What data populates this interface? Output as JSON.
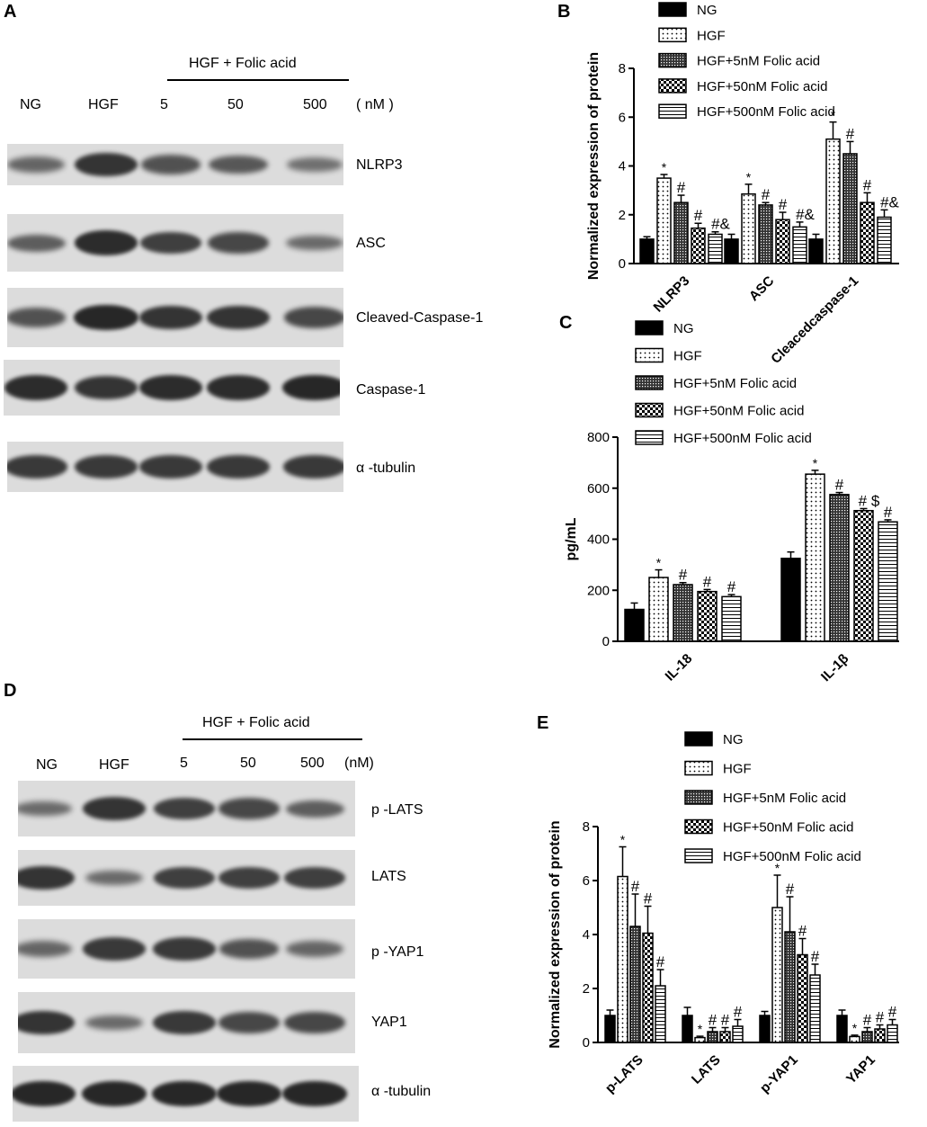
{
  "panel_labels": {
    "a": "A",
    "b": "B",
    "c": "C",
    "d": "D",
    "e": "E"
  },
  "blot_A": {
    "header": "HGF + Folic acid",
    "lanes": [
      "NG",
      "HGF",
      "5",
      "50",
      "500"
    ],
    "unit": "( nM )",
    "rows": [
      {
        "label": "NLRP3",
        "intensity": [
          0.45,
          0.85,
          0.6,
          0.55,
          0.35
        ]
      },
      {
        "label": "ASC",
        "intensity": [
          0.5,
          0.9,
          0.75,
          0.7,
          0.4
        ]
      },
      {
        "label": "Cleaved-Caspase-1",
        "intensity": [
          0.6,
          0.95,
          0.85,
          0.85,
          0.7
        ]
      },
      {
        "label": "Caspase-1",
        "intensity": [
          0.9,
          0.85,
          0.9,
          0.9,
          0.95
        ]
      },
      {
        "label": "α -tubulin",
        "intensity": [
          0.8,
          0.8,
          0.8,
          0.8,
          0.8
        ]
      }
    ]
  },
  "blot_D": {
    "header": "HGF + Folic acid",
    "lanes": [
      "NG",
      "HGF",
      "5",
      "50",
      "500"
    ],
    "unit": "(nM)",
    "rows": [
      {
        "label": "p -LATS",
        "intensity": [
          0.4,
          0.85,
          0.75,
          0.7,
          0.5
        ]
      },
      {
        "label": "LATS",
        "intensity": [
          0.85,
          0.4,
          0.75,
          0.75,
          0.75
        ]
      },
      {
        "label": "p -YAP1",
        "intensity": [
          0.45,
          0.8,
          0.8,
          0.6,
          0.45
        ]
      },
      {
        "label": "YAP1",
        "intensity": [
          0.85,
          0.4,
          0.8,
          0.7,
          0.7
        ]
      },
      {
        "label": "α -tubulin",
        "intensity": [
          0.95,
          0.95,
          0.95,
          0.95,
          0.95
        ]
      }
    ]
  },
  "legend_entries": [
    "NG",
    "HGF",
    "HGF+5nM Folic acid",
    "HGF+50nM Folic acid",
    "HGF+500nM Folic acid"
  ],
  "chart_data": [
    {
      "panel": "B",
      "type": "bar",
      "ylabel": "Normalized expression of protein",
      "ylim": [
        0,
        8
      ],
      "yticks": [
        0,
        2,
        4,
        6,
        8
      ],
      "categories": [
        "NLRP3",
        "ASC",
        "Cleacedcaspase-1"
      ],
      "series": [
        {
          "name": "NG",
          "values": [
            1.0,
            1.0,
            1.0
          ],
          "errors": [
            0.1,
            0.2,
            0.2
          ]
        },
        {
          "name": "HGF",
          "values": [
            3.5,
            2.85,
            5.1
          ],
          "errors": [
            0.15,
            0.4,
            0.7
          ]
        },
        {
          "name": "HGF+5nM Folic acid",
          "values": [
            2.5,
            2.4,
            4.5
          ],
          "errors": [
            0.3,
            0.1,
            0.5
          ]
        },
        {
          "name": "HGF+50nM Folic acid",
          "values": [
            1.45,
            1.8,
            2.5
          ],
          "errors": [
            0.2,
            0.3,
            0.4
          ]
        },
        {
          "name": "HGF+500nM Folic acid",
          "values": [
            1.2,
            1.5,
            1.9
          ],
          "errors": [
            0.1,
            0.2,
            0.3
          ]
        }
      ],
      "annotations": [
        [
          "",
          "*",
          "#",
          "#",
          "#&"
        ],
        [
          "",
          "*",
          "#",
          "#",
          "#&"
        ],
        [
          "",
          "*",
          "#",
          "#",
          "#&"
        ]
      ]
    },
    {
      "panel": "C",
      "type": "bar",
      "ylabel": "pg/mL",
      "ylim": [
        0,
        800
      ],
      "yticks": [
        0,
        200,
        400,
        600,
        800
      ],
      "categories": [
        "IL-18",
        "IL-1β"
      ],
      "series": [
        {
          "name": "NG",
          "values": [
            125,
            325
          ],
          "errors": [
            25,
            25
          ]
        },
        {
          "name": "HGF",
          "values": [
            250,
            655
          ],
          "errors": [
            30,
            15
          ]
        },
        {
          "name": "HGF+5nM Folic acid",
          "values": [
            222,
            575
          ],
          "errors": [
            8,
            8
          ]
        },
        {
          "name": "HGF+50nM Folic acid",
          "values": [
            195,
            512
          ],
          "errors": [
            8,
            8
          ]
        },
        {
          "name": "HGF+500nM Folic acid",
          "values": [
            175,
            468
          ],
          "errors": [
            8,
            8
          ]
        }
      ],
      "annotations": [
        [
          "",
          "*",
          "#",
          "#",
          "#"
        ],
        [
          "",
          "*",
          "#",
          "# $",
          "#"
        ]
      ]
    },
    {
      "panel": "E",
      "type": "bar",
      "ylabel": "Normalized expression of protein",
      "ylim": [
        0,
        8
      ],
      "yticks": [
        0,
        2,
        4,
        6,
        8
      ],
      "categories": [
        "p-LATS",
        "LATS",
        "p-YAP1",
        "YAP1"
      ],
      "series": [
        {
          "name": "NG",
          "values": [
            1.0,
            1.0,
            1.0,
            1.0
          ],
          "errors": [
            0.2,
            0.3,
            0.15,
            0.2
          ]
        },
        {
          "name": "HGF",
          "values": [
            6.15,
            0.18,
            5.0,
            0.22
          ],
          "errors": [
            1.1,
            0.05,
            1.2,
            0.05
          ]
        },
        {
          "name": "HGF+5nM Folic acid",
          "values": [
            4.3,
            0.4,
            4.1,
            0.4
          ],
          "errors": [
            1.2,
            0.15,
            1.3,
            0.15
          ]
        },
        {
          "name": "HGF+50nM Folic acid",
          "values": [
            4.05,
            0.4,
            3.25,
            0.5
          ],
          "errors": [
            1.0,
            0.15,
            0.6,
            0.15
          ]
        },
        {
          "name": "HGF+500nM Folic acid",
          "values": [
            2.1,
            0.6,
            2.5,
            0.65
          ],
          "errors": [
            0.6,
            0.25,
            0.4,
            0.2
          ]
        }
      ],
      "annotations": [
        [
          "",
          "*",
          "#",
          "#",
          "#"
        ],
        [
          "",
          "*",
          "#",
          "#",
          "#"
        ],
        [
          "",
          "*",
          "#",
          "#",
          "#"
        ],
        [
          "",
          "*",
          "#",
          "#",
          "#"
        ]
      ]
    }
  ]
}
